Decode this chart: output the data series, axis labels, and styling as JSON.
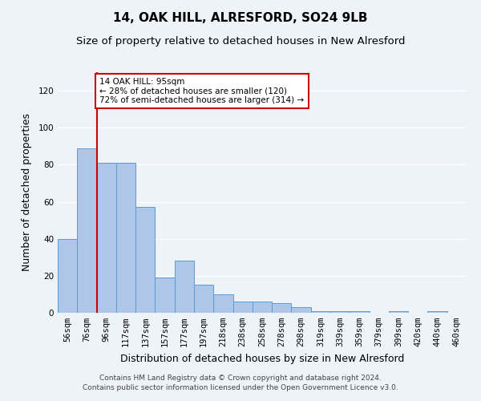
{
  "title": "14, OAK HILL, ALRESFORD, SO24 9LB",
  "subtitle": "Size of property relative to detached houses in New Alresford",
  "xlabel": "Distribution of detached houses by size in New Alresford",
  "ylabel": "Number of detached properties",
  "categories": [
    "56sqm",
    "76sqm",
    "96sqm",
    "117sqm",
    "137sqm",
    "157sqm",
    "177sqm",
    "197sqm",
    "218sqm",
    "238sqm",
    "258sqm",
    "278sqm",
    "298sqm",
    "319sqm",
    "339sqm",
    "359sqm",
    "379sqm",
    "399sqm",
    "420sqm",
    "440sqm",
    "460sqm"
  ],
  "bar_heights": [
    40,
    89,
    81,
    81,
    57,
    19,
    28,
    15,
    10,
    6,
    6,
    5,
    3,
    1,
    1,
    1,
    0,
    1,
    0,
    1,
    0
  ],
  "bar_color": "#aec6e8",
  "bar_edge_color": "#5b9bd5",
  "ref_line_color": "#cc0000",
  "annotation_line1": "14 OAK HILL: 95sqm",
  "annotation_line2": "← 28% of detached houses are smaller (120)",
  "annotation_line3": "72% of semi-detached houses are larger (314) →",
  "annotation_box_color": "#ffffff",
  "annotation_box_edge": "#cc0000",
  "ylim": [
    0,
    130
  ],
  "yticks": [
    0,
    20,
    40,
    60,
    80,
    100,
    120
  ],
  "footer1": "Contains HM Land Registry data © Crown copyright and database right 2024.",
  "footer2": "Contains public sector information licensed under the Open Government Licence v3.0.",
  "background_color": "#eef2f9",
  "grid_color": "#ffffff",
  "title_fontsize": 11,
  "subtitle_fontsize": 9.5,
  "tick_fontsize": 7.5,
  "axis_label_fontsize": 9,
  "footer_fontsize": 6.5
}
